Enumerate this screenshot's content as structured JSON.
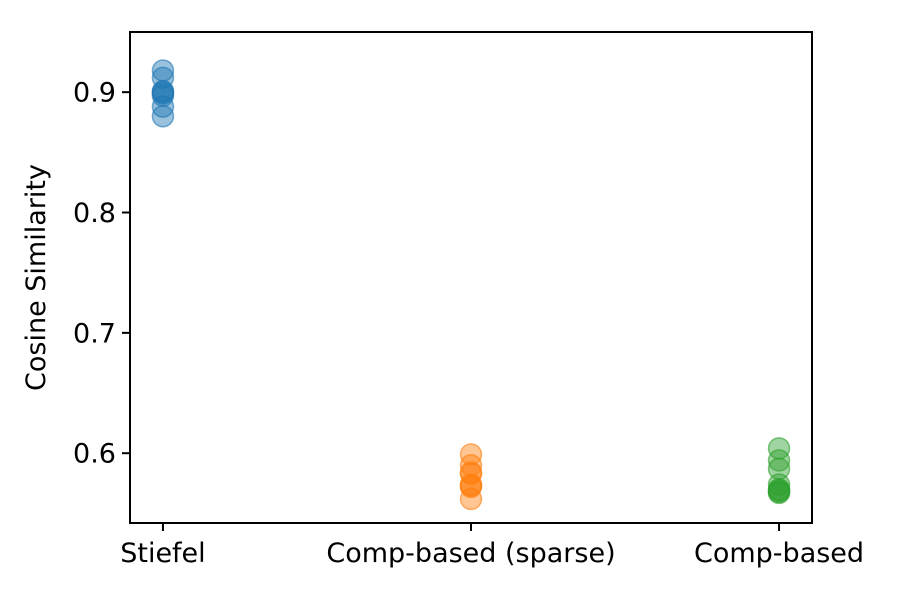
{
  "chart_data": {
    "type": "scatter",
    "title": "",
    "xlabel": "",
    "ylabel": "Cosine Similarity",
    "categories": [
      "Stiefel",
      "Comp-based (sparse)",
      "Comp-based"
    ],
    "series": [
      {
        "name": "Stiefel",
        "color": "#1f77b4",
        "x": 0,
        "values": [
          0.918,
          0.912,
          0.901,
          0.9,
          0.899,
          0.897,
          0.888,
          0.88
        ]
      },
      {
        "name": "Comp-based (sparse)",
        "color": "#ff7f0e",
        "x": 1,
        "values": [
          0.599,
          0.59,
          0.584,
          0.583,
          0.574,
          0.573,
          0.572,
          0.562
        ]
      },
      {
        "name": "Comp-based",
        "color": "#2ca02c",
        "x": 2,
        "values": [
          0.604,
          0.594,
          0.587,
          0.574,
          0.57,
          0.569,
          0.568,
          0.567
        ]
      }
    ],
    "xlim": [
      -0.107,
      2.107
    ],
    "ylim": [
      0.542,
      0.95
    ],
    "yticks": [
      0.6,
      0.7,
      0.8,
      0.9
    ],
    "ytick_labels": [
      "0.6",
      "0.7",
      "0.8",
      "0.9"
    ],
    "grid": false,
    "legend": false,
    "background": "#ffffff",
    "axis_color": "#000000",
    "marker": {
      "radius_px": 10.5,
      "alpha": 0.45
    }
  }
}
